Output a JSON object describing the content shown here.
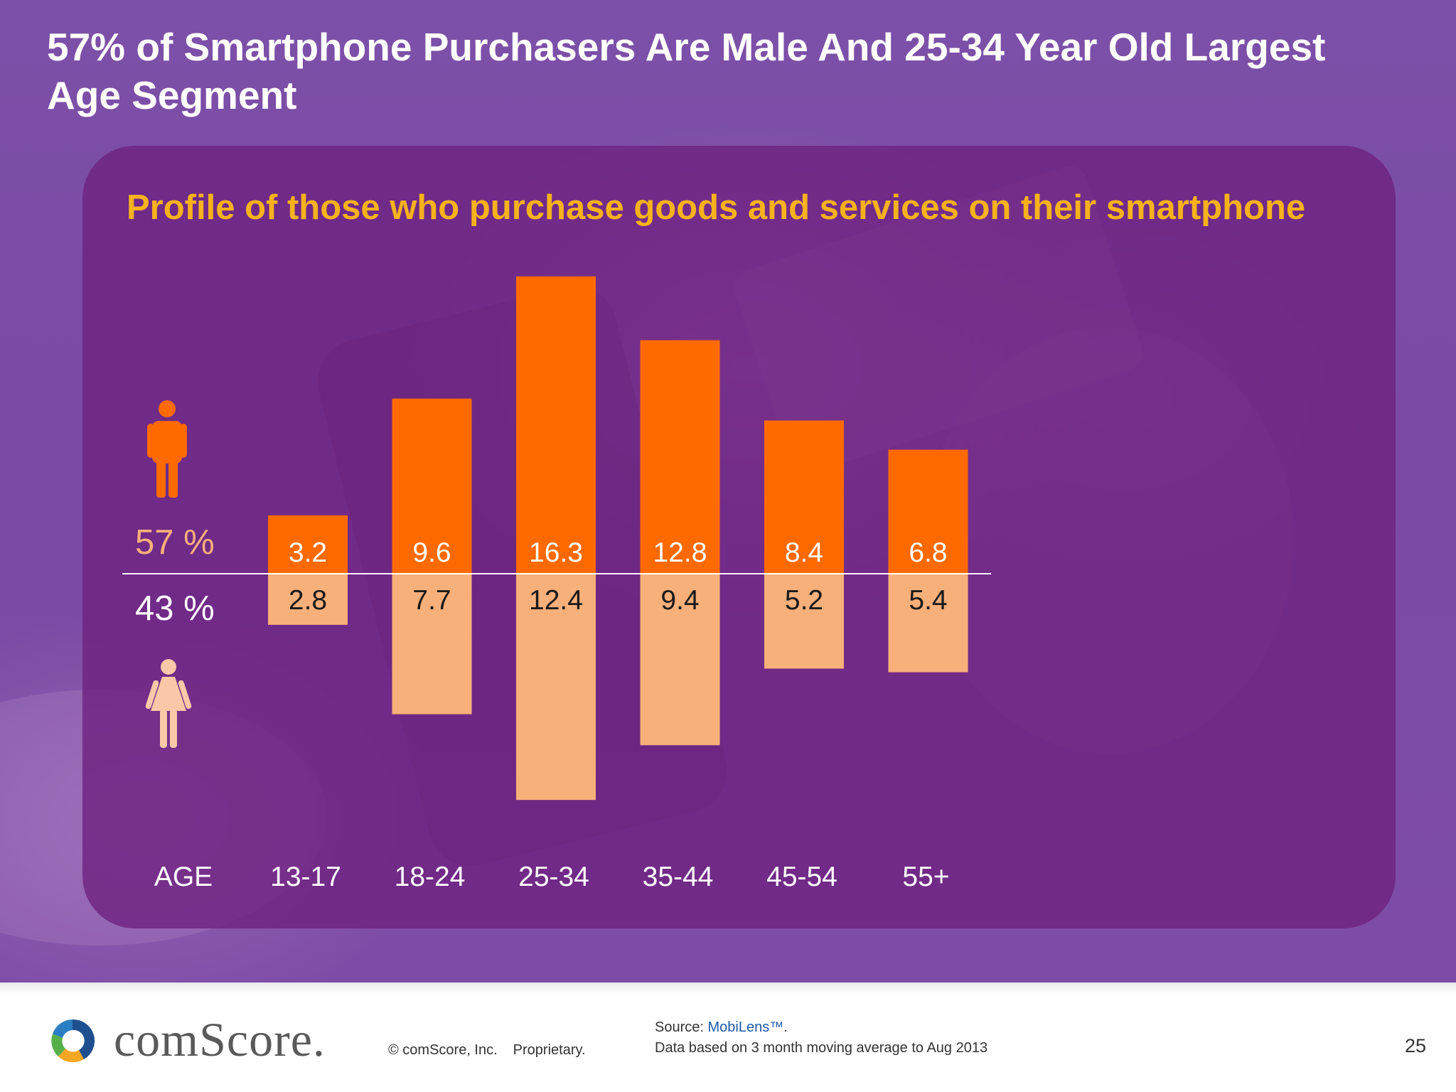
{
  "slide": {
    "title": "57% of Smartphone Purchasers Are Male And 25-34 Year Old Largest Age Segment",
    "subtitle": "Profile of those who purchase goods and services on their smartphone"
  },
  "legend": {
    "male_pct": "57 %",
    "female_pct": "43 %",
    "male_icon": "man-figure-icon",
    "female_icon": "woman-figure-icon"
  },
  "chart_data": {
    "type": "bar",
    "layout": "diverging-stacked",
    "categories_label": "AGE",
    "categories": [
      "13-17",
      "18-24",
      "25-34",
      "35-44",
      "45-54",
      "55+"
    ],
    "series": [
      {
        "name": "57 %",
        "values": [
          3.2,
          9.6,
          16.3,
          12.8,
          8.4,
          6.8
        ],
        "color": "#ff6a00",
        "direction": "up"
      },
      {
        "name": "43 %",
        "values": [
          2.8,
          7.7,
          12.4,
          9.4,
          5.2,
          5.4
        ],
        "color": "#f8b07a",
        "direction": "down"
      }
    ],
    "data_labels": true,
    "grid": false
  },
  "footer": {
    "brand": "comScore.",
    "copyright": "© comScore, Inc.",
    "proprietary": "Proprietary.",
    "source_label": "Source: ",
    "source_name": "MobiLens™",
    "source_suffix": ".",
    "data_note": "Data based on 3 month moving average to Aug 2013",
    "page_number": "25"
  },
  "colors": {
    "background": "#7c50a8",
    "panel": "#6e2280",
    "title": "#ffffff",
    "subtitle": "#f6b21c",
    "male_bar": "#ff6a00",
    "female_bar": "#f8b07a"
  }
}
